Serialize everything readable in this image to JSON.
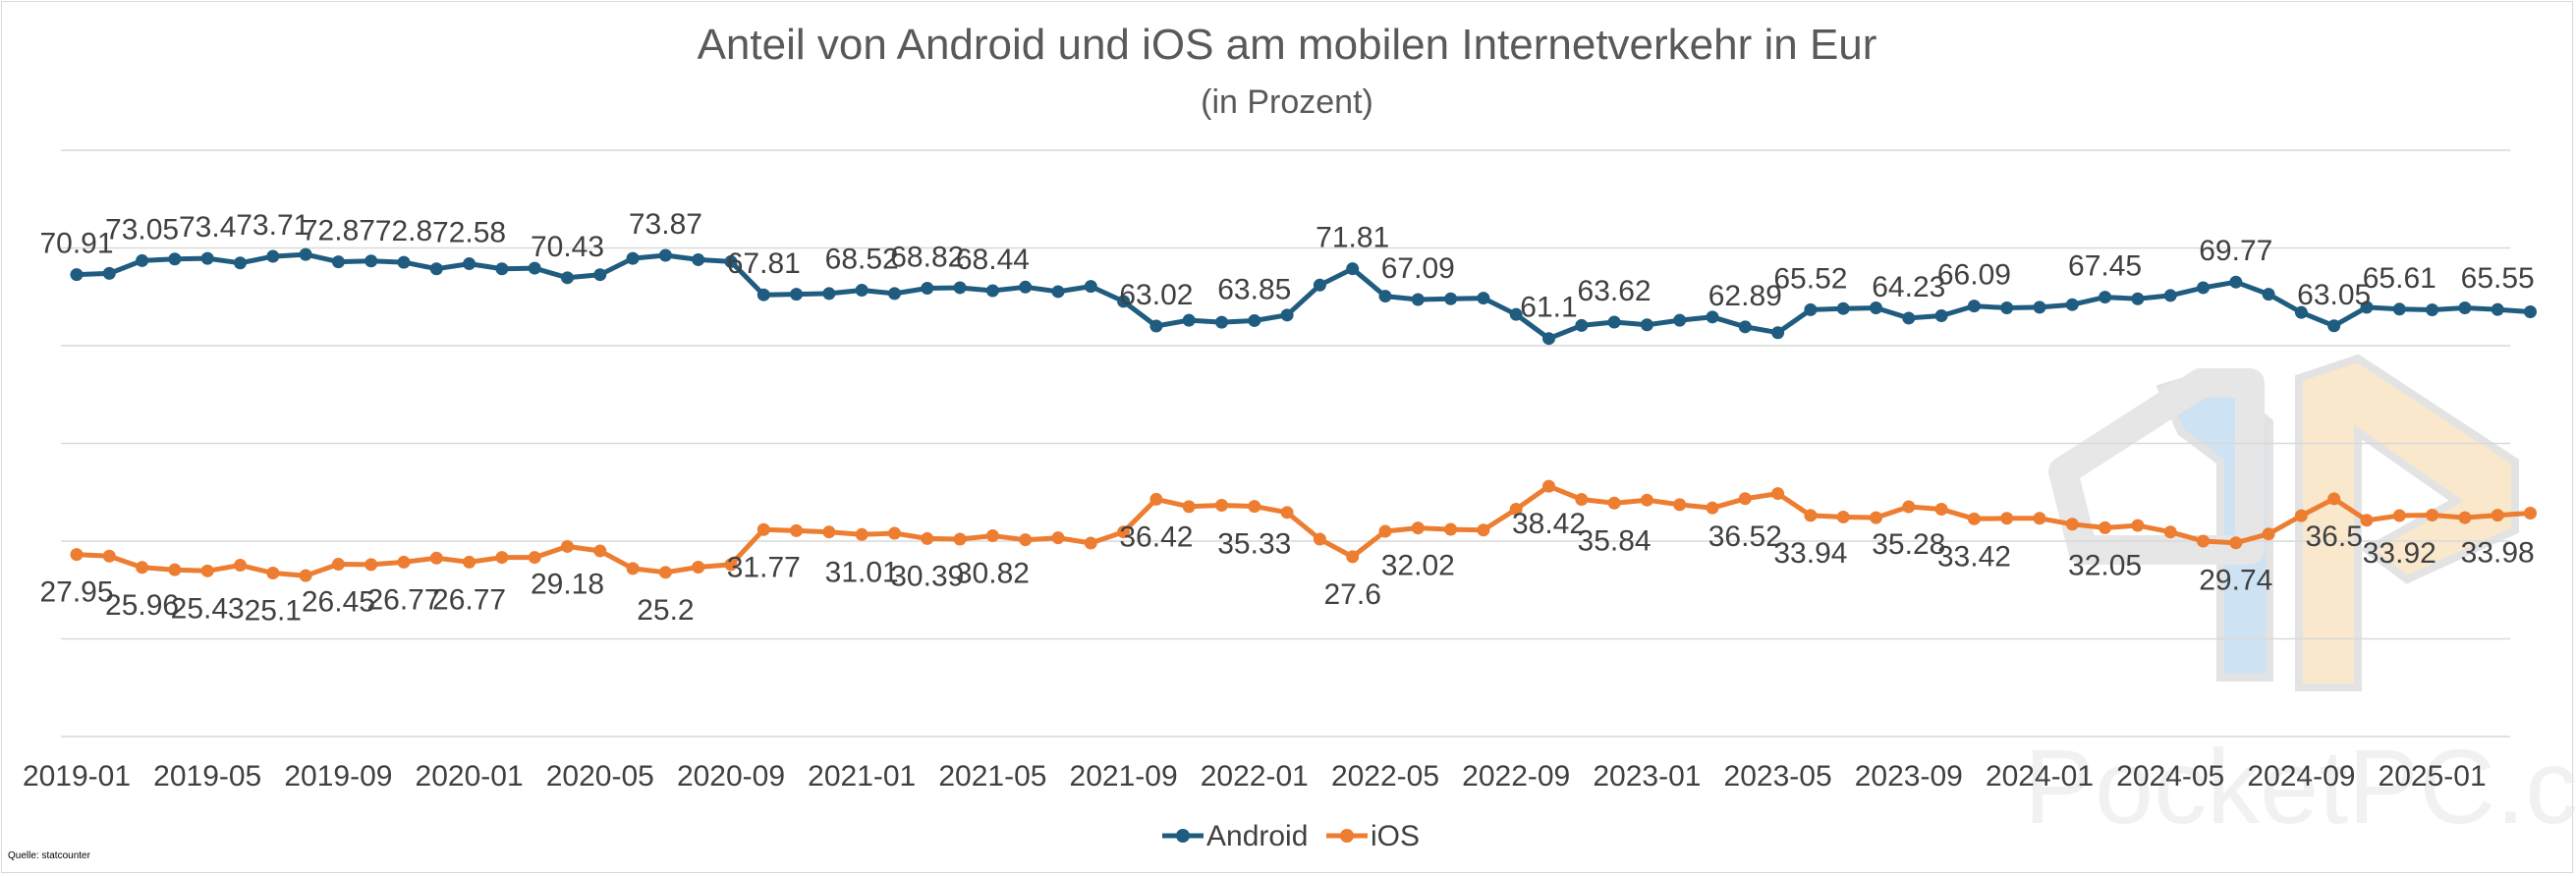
{
  "chart_data": {
    "type": "line",
    "title": "Anteil von Android und iOS am mobilen Internetverkehr in Eur",
    "subtitle": "(in Prozent)",
    "xlabel": "",
    "ylabel": "",
    "ylim": [
      0,
      90
    ],
    "grid": true,
    "legend": "bottom-center",
    "source": "Quelle: statcounter",
    "watermark": "PocketPC.ch",
    "tick_labels": [
      "2019-01",
      "2019-05",
      "2019-09",
      "2020-01",
      "2020-05",
      "2020-09",
      "2021-01",
      "2021-05",
      "2021-09",
      "2022-01",
      "2022-05",
      "2022-09",
      "2023-01",
      "2023-05",
      "2023-09",
      "2024-01",
      "2024-05",
      "2024-09",
      "2025-01"
    ],
    "x": [
      "2019-01",
      "2019-02",
      "2019-03",
      "2019-04",
      "2019-05",
      "2019-06",
      "2019-07",
      "2019-08",
      "2019-09",
      "2019-10",
      "2019-11",
      "2019-12",
      "2020-01",
      "2020-02",
      "2020-03",
      "2020-04",
      "2020-05",
      "2020-06",
      "2020-07",
      "2020-08",
      "2020-09",
      "2020-10",
      "2020-11",
      "2020-12",
      "2021-01",
      "2021-02",
      "2021-03",
      "2021-04",
      "2021-05",
      "2021-06",
      "2021-07",
      "2021-08",
      "2021-09",
      "2021-10",
      "2021-11",
      "2021-12",
      "2022-01",
      "2022-02",
      "2022-03",
      "2022-04",
      "2022-05",
      "2022-06",
      "2022-07",
      "2022-08",
      "2022-09",
      "2022-10",
      "2022-11",
      "2022-12",
      "2023-01",
      "2023-02",
      "2023-03",
      "2023-04",
      "2023-05",
      "2023-06",
      "2023-07",
      "2023-08",
      "2023-09",
      "2023-10",
      "2023-11",
      "2023-12",
      "2024-01",
      "2024-02",
      "2024-03",
      "2024-04",
      "2024-05",
      "2024-06",
      "2024-07",
      "2024-08",
      "2024-09",
      "2024-10",
      "2024-11",
      "2024-12",
      "2025-01",
      "2025-02",
      "2025-03",
      "2025-04"
    ],
    "series": [
      {
        "name": "Android",
        "color": "#1f5c7f",
        "values": [
          70.91,
          71.1,
          73.05,
          73.3,
          73.4,
          72.7,
          73.71,
          74.0,
          72.87,
          73.0,
          72.8,
          71.8,
          72.58,
          71.8,
          71.9,
          70.43,
          70.9,
          73.4,
          73.87,
          73.2,
          72.9,
          67.81,
          67.9,
          68.0,
          68.52,
          68.0,
          68.82,
          68.9,
          68.44,
          69.0,
          68.3,
          69.1,
          66.8,
          63.02,
          63.9,
          63.6,
          63.85,
          64.7,
          69.3,
          71.81,
          67.6,
          67.09,
          67.2,
          67.3,
          64.8,
          61.1,
          63.1,
          63.62,
          63.2,
          63.9,
          64.4,
          62.89,
          62.0,
          65.52,
          65.7,
          65.8,
          64.23,
          64.6,
          66.09,
          65.8,
          65.9,
          66.3,
          67.45,
          67.2,
          67.7,
          68.9,
          69.77,
          67.9,
          65.1,
          63.05,
          65.9,
          65.61,
          65.5,
          65.8,
          65.55,
          65.2
        ]
      },
      {
        "name": "iOS",
        "color": "#ed7d31",
        "values": [
          27.95,
          27.7,
          25.96,
          25.6,
          25.43,
          26.3,
          25.1,
          24.7,
          26.45,
          26.4,
          26.77,
          27.4,
          26.77,
          27.5,
          27.5,
          29.18,
          28.5,
          25.8,
          25.2,
          26.0,
          26.4,
          31.77,
          31.6,
          31.4,
          31.01,
          31.2,
          30.39,
          30.3,
          30.82,
          30.2,
          30.5,
          29.7,
          31.4,
          36.42,
          35.3,
          35.5,
          35.33,
          34.4,
          30.3,
          27.6,
          31.5,
          32.02,
          31.8,
          31.7,
          34.9,
          38.42,
          36.4,
          35.84,
          36.3,
          35.6,
          35.1,
          36.52,
          37.3,
          33.94,
          33.7,
          33.6,
          35.28,
          34.9,
          33.42,
          33.5,
          33.5,
          32.6,
          32.05,
          32.4,
          31.4,
          30.0,
          29.74,
          31.1,
          33.9,
          36.5,
          33.2,
          33.92,
          34.0,
          33.6,
          33.98,
          34.3
        ]
      }
    ],
    "label_indices": [
      0,
      2,
      4,
      6,
      8,
      10,
      12,
      15,
      18,
      21,
      24,
      26,
      28,
      33,
      36,
      39,
      41,
      45,
      47,
      51,
      53,
      56,
      58,
      62,
      66,
      69,
      71,
      74
    ]
  }
}
